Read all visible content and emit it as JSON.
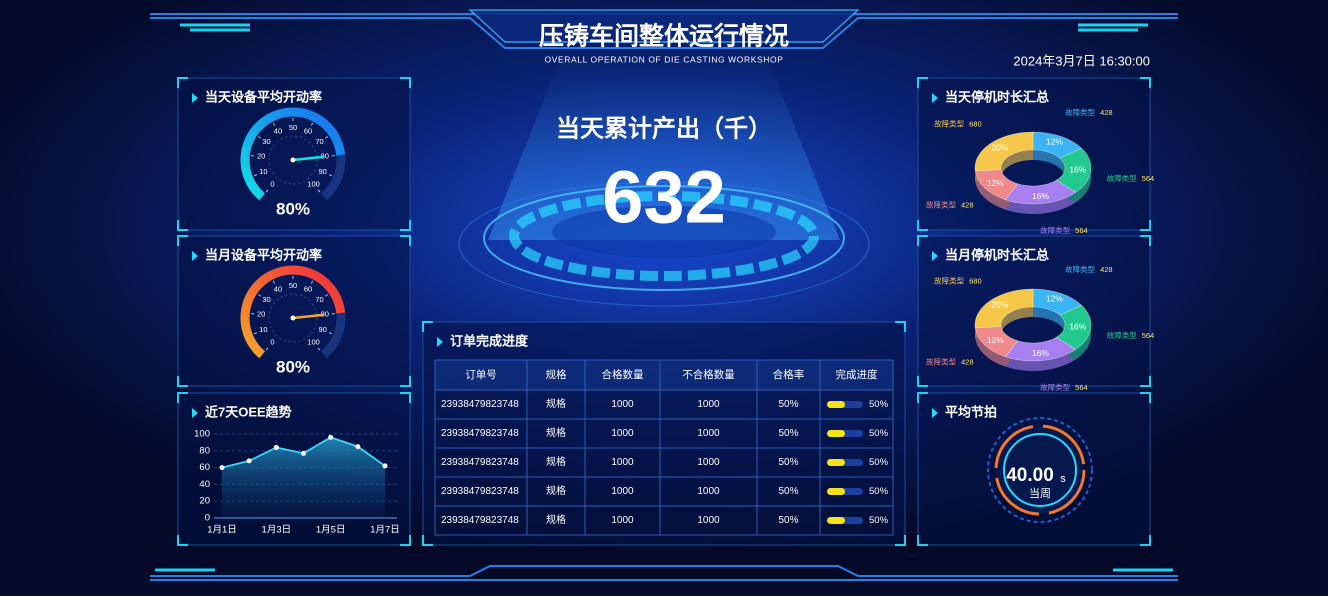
{
  "header": {
    "title": "压铸车间整体运行情况",
    "subtitle": "OVERALL OPERATION OF DIE CASTING WORKSHOP",
    "datetime": "2024年3月7日  16:30:00"
  },
  "output": {
    "title": "当天累计产出（千）",
    "value": 632
  },
  "chart_data": [
    {
      "type": "gauge",
      "title": "当天设备平均开动率",
      "values": [
        80
      ],
      "value_labels": [
        "80%"
      ],
      "ylim": [
        0,
        100
      ],
      "yticks": [
        0,
        10,
        20,
        30,
        40,
        50,
        60,
        70,
        80,
        90,
        100
      ],
      "colors": [
        "#12e0e8",
        "#1a6cf0"
      ]
    },
    {
      "type": "gauge",
      "title": "当月设备平均开动率",
      "values": [
        80
      ],
      "value_labels": [
        "80%"
      ],
      "ylim": [
        0,
        100
      ],
      "yticks": [
        0,
        10,
        20,
        30,
        40,
        50,
        60,
        70,
        80,
        90,
        100
      ],
      "colors": [
        "#f6a52a",
        "#ef2b3d"
      ]
    },
    {
      "type": "line",
      "title": "近7天OEE趋势",
      "categories": [
        "1月1日",
        null,
        "1月3日",
        null,
        "1月5日",
        null,
        "1月7日"
      ],
      "values": [
        60,
        68,
        84,
        77,
        96,
        85,
        62
      ],
      "ylim": [
        0,
        100
      ],
      "yticks": [
        0,
        20,
        40,
        60,
        80,
        100
      ],
      "color": "#3fd6f5",
      "grid": true
    },
    {
      "type": "donut",
      "title": "当天停机时长汇总",
      "categories": [
        "故障类型",
        "故障类型",
        "故障类型",
        "故障类型",
        "故障类型"
      ],
      "values": [
        12,
        16,
        16,
        12,
        20
      ],
      "value_labels": [
        "12%",
        "16%",
        "16%",
        "12%",
        "20%"
      ],
      "amounts": [
        428,
        564,
        564,
        428,
        680
      ],
      "colors": [
        "#3ab4f2",
        "#22c98e",
        "#a77ff0",
        "#f08a8a",
        "#f5c84a"
      ]
    },
    {
      "type": "donut",
      "title": "当月停机时长汇总",
      "categories": [
        "故障类型",
        "故障类型",
        "故障类型",
        "故障类型",
        "故障类型"
      ],
      "values": [
        12,
        16,
        16,
        12,
        20
      ],
      "value_labels": [
        "12%",
        "16%",
        "16%",
        "12%",
        "20%"
      ],
      "amounts": [
        428,
        564,
        564,
        428,
        680
      ],
      "colors": [
        "#3ab4f2",
        "#22c98e",
        "#a77ff0",
        "#f08a8a",
        "#f5c84a"
      ]
    }
  ],
  "table": {
    "title": "订单完成进度",
    "columns": [
      "订单号",
      "规格",
      "合格数量",
      "不合格数量",
      "合格率",
      "完成进度"
    ],
    "progress_lim": [
      0,
      100
    ],
    "rows": [
      {
        "order": "23938479823748",
        "spec": "规格",
        "qualified": 1000,
        "unqualified": 1000,
        "rate": "50%",
        "progress": 50,
        "progress_label": "50%"
      },
      {
        "order": "23938479823748",
        "spec": "规格",
        "qualified": 1000,
        "unqualified": 1000,
        "rate": "50%",
        "progress": 50,
        "progress_label": "50%"
      },
      {
        "order": "23938479823748",
        "spec": "规格",
        "qualified": 1000,
        "unqualified": 1000,
        "rate": "50%",
        "progress": 50,
        "progress_label": "50%"
      },
      {
        "order": "23938479823748",
        "spec": "规格",
        "qualified": 1000,
        "unqualified": 1000,
        "rate": "50%",
        "progress": 50,
        "progress_label": "50%"
      },
      {
        "order": "23938479823748",
        "spec": "规格",
        "qualified": 1000,
        "unqualified": 1000,
        "rate": "50%",
        "progress": 50,
        "progress_label": "50%"
      }
    ]
  },
  "cycle": {
    "title": "平均节拍",
    "value": "40.00",
    "unit": "s",
    "caption": "当周"
  }
}
